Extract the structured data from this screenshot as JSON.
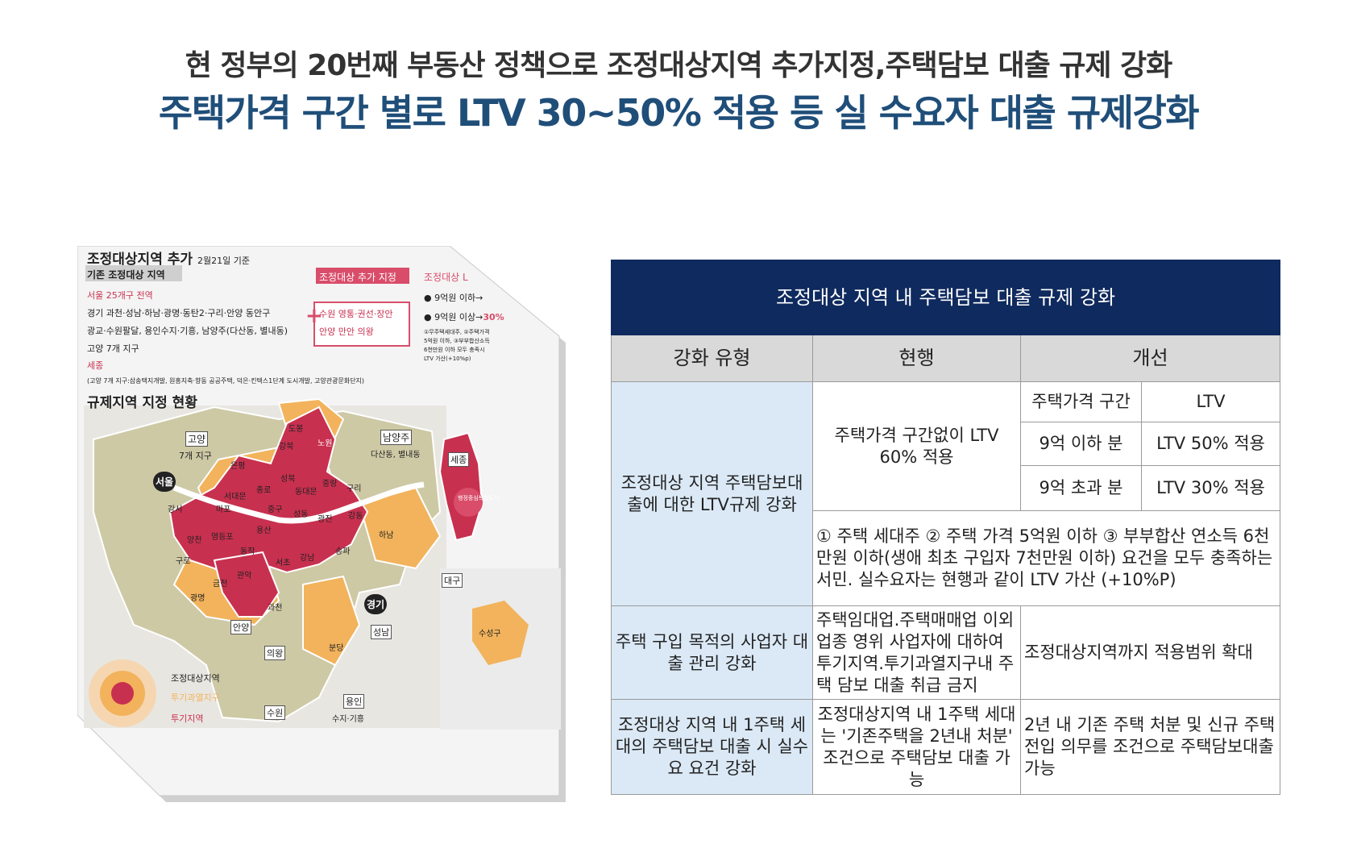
{
  "header": {
    "line1": "현 정부의 20번째 부동산 정책으로 조정대상지역 추가지정,주택담보 대출 규제 강화",
    "line2": "주택가격 구간 별로 LTV 30~50% 적용 등 실 수요자 대출 규제강화"
  },
  "map": {
    "title": "조정대상지역 추가",
    "date": "2월21일 기준",
    "existing_label": "기존 조정대상 지역",
    "added_label": "조정대상 추가 지정",
    "right_label": "조정대상 L",
    "lines": [
      "서울 25개구 전역",
      "경기 과천·성남·하남·광명·동탄2·구리·안양 동안구",
      "광교·수원팔달, 용인수지·기흥, 남양주(다산동, 별내동)",
      "고양 7개 지구",
      "세종",
      "(고양 7개 지구:삼송택지개발, 원흥지축·향동 공공주택, 덕은·킨텍스1단계 도시개발, 고양관광문화단지)"
    ],
    "added_text_1": "수원 영통·권선·장안",
    "added_text_2": "안양 만안 의왕",
    "ltv_1": "9억원 이하→",
    "ltv_2": "9억원 이상→",
    "ltv_pct": "30%",
    "ltv_note_1": "①무주택세대주, ②주택가격",
    "ltv_note_2": "5억원 이하, ③부부합산소득",
    "ltv_note_3": "6천만원 이하 모두 충족시",
    "ltv_note_4": "LTV 가산(+10%p)",
    "section_title": "규제지역 지정 현황",
    "labels": {
      "goyang": "고양",
      "goyang_sub": "7개 지구",
      "namyangju": "남양주",
      "namyangju_sub": "다산동, 별내동",
      "sejong": "세종",
      "seoul": "서울",
      "gyeonggi": "경기",
      "seongnam": "성남",
      "anyang": "안양",
      "uiwang": "의왕",
      "suwon": "수원",
      "yongin": "용인",
      "yongin_sub": "수지·기흥",
      "daegu": "대구",
      "suseong": "수성구",
      "dobong": "도봉",
      "nowon": "노원",
      "gangbuk": "강북",
      "eunpyeong": "은평",
      "seongbuk": "성북",
      "jungnang": "중랑",
      "guri": "구리",
      "seodaemun": "서대문",
      "jongno": "종로",
      "dongdaemun": "동대문",
      "mapo": "마포",
      "junggu": "중구",
      "seongdong": "성동",
      "gwangjin": "광진",
      "gangdong": "강동",
      "gangseo": "강서",
      "yongsan": "용산",
      "hanam": "하남",
      "yangcheon": "양천",
      "yeongdeungpo": "영등포",
      "dongjak": "동작",
      "guro": "구로",
      "seocho": "서초",
      "gangnam": "강남",
      "songpa": "송파",
      "geumcheon": "금천",
      "gwanak": "관악",
      "gwangmyeong": "광명",
      "gwacheon": "과천",
      "bundang": "분당",
      "sejong_city": "행정중심복합도시"
    },
    "legend": [
      "조정대상지역",
      "투기과열지구",
      "투기지역"
    ]
  },
  "table": {
    "title": "조정대상 지역 내 주택담보 대출 규제 강화",
    "columns": [
      "강화 유형",
      "현행",
      "개선"
    ],
    "row1": {
      "type": "조정대상 지역 주택담보대출에 대한 LTV규제 강화",
      "current": "주택가격 구간없이 LTV 60% 적용",
      "sub_headers": [
        "주택가격 구간",
        "LTV"
      ],
      "sub_rows": [
        [
          "9억 이하 분",
          "LTV 50% 적용"
        ],
        [
          "9억 초과 분",
          "LTV 30% 적용"
        ]
      ],
      "note": "① 주택 세대주 ② 주택 가격 5억원 이하 ③ 부부합산 연소득 6천만원 이하(생애 최초 구입자 7천만원 이하) 요건을 모두 충족하는 서민. 실수요자는 현행과 같이 LTV 가산 (+10%P)"
    },
    "row2": {
      "type": "주택 구입 목적의 사업자 대출 관리 강화",
      "current": "주택임대업.주택매매업 이외 업종 영위 사업자에 대하여 투기지역.투기과열지구내 주택 담보 대출 취급 금지",
      "improved": "조정대상지역까지 적용범위 확대"
    },
    "row3": {
      "type": "조정대상 지역 내 1주택 세대의 주택담보 대출 시 실수요 요건 강화",
      "current": "조정대상지역 내 1주택 세대는 '기존주택을 2년내 처분' 조건으로 주택담보 대출 가능",
      "improved": "2년 내 기존 주택 처분 및 신규 주택 전입 의무를 조건으로 주택담보대출 가능"
    }
  },
  "colors": {
    "navy": "#0f2a5e",
    "title_blue": "#1f4e79",
    "crimson": "#c8304f",
    "orange": "#f2b35c",
    "khaki": "#cdc9a5"
  }
}
